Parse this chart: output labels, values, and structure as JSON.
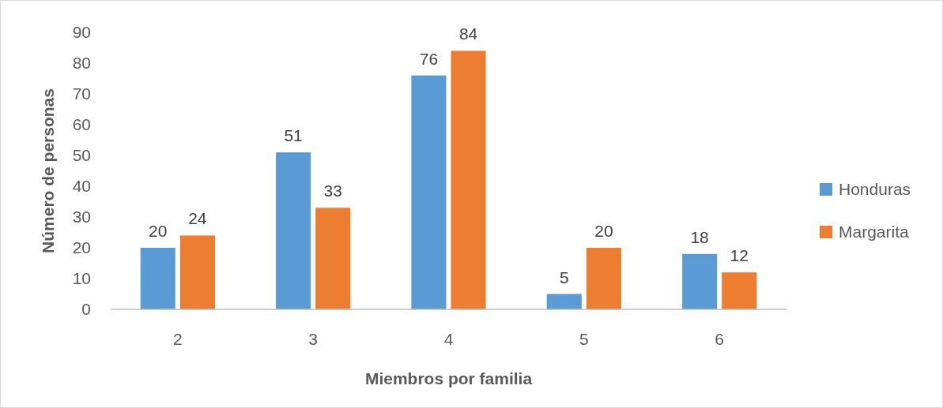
{
  "chart_data": {
    "type": "bar",
    "xlabel": "Miembros por familia",
    "ylabel": "Número de personas",
    "categories": [
      "2",
      "3",
      "4",
      "5",
      "6"
    ],
    "series": [
      {
        "name": "Honduras",
        "color": "#5b9bd5",
        "values": [
          20,
          51,
          76,
          5,
          18
        ]
      },
      {
        "name": "Margarita",
        "color": "#ed7d31",
        "values": [
          24,
          33,
          84,
          20,
          12
        ]
      }
    ],
    "ylim": [
      0,
      90
    ],
    "yticks": [
      0,
      10,
      20,
      30,
      40,
      50,
      60,
      70,
      80,
      90
    ],
    "grid": false,
    "legend": "right",
    "data_labels": true
  }
}
